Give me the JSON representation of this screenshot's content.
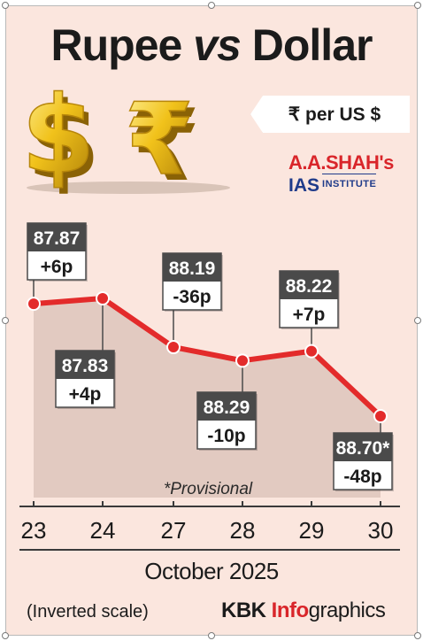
{
  "title": {
    "part1": "Rupee",
    "part2": "vs",
    "part3": "Dollar"
  },
  "unit_label": "₹ per US $",
  "logo": {
    "line1": "A.A.SHAH's",
    "line2a": "IAS",
    "line2b": "INSTITUTE"
  },
  "colors": {
    "background": "#fbe6de",
    "line": "#e32b2b",
    "box_dark": "#4a4a4a",
    "accent": "#d9252a"
  },
  "chart_data": {
    "type": "line",
    "title": "Rupee vs Dollar",
    "ylabel": "₹ per US $",
    "xlabel": "October 2025",
    "y_scale": "inverted",
    "categories": [
      "23",
      "24",
      "27",
      "28",
      "29",
      "30"
    ],
    "values": [
      87.87,
      87.83,
      88.19,
      88.29,
      88.22,
      88.7
    ],
    "value_labels": [
      "87.87",
      "87.83",
      "88.19",
      "88.29",
      "88.22",
      "88.70*"
    ],
    "change_labels": [
      "+6p",
      "+4p",
      "-36p",
      "-10p",
      "+7p",
      "-48p"
    ],
    "annotation": "*Provisional"
  },
  "footer": {
    "month": "October  2025",
    "note": "(Inverted scale)",
    "brand_part1": "KBK ",
    "brand_part2": "Info",
    "brand_part3": "graphics"
  }
}
